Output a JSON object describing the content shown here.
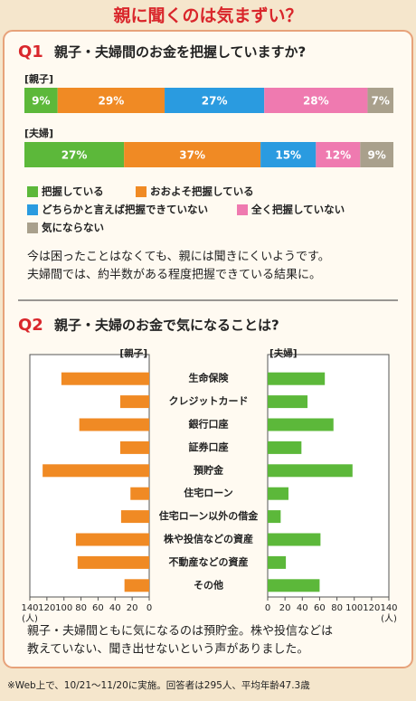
{
  "title": "親に聞くのは気まずい？",
  "chart_data": [
    {
      "type": "stacked-bar",
      "label": "Q1",
      "title": "親子・夫婦間のお金を把握していますか?",
      "categories": [
        "[親子]",
        "[夫婦]"
      ],
      "series": [
        {
          "name": "把握している",
          "color": "#5cb83a",
          "values": [
            9,
            27
          ],
          "value_labels": [
            "9%",
            "27%"
          ]
        },
        {
          "name": "おおよそ把握している",
          "color": "#f08a24",
          "values": [
            29,
            37
          ],
          "value_labels": [
            "29%",
            "37%"
          ]
        },
        {
          "name": "どちらかと言えば把握できていない",
          "color": "#2a9be0",
          "values": [
            27,
            15
          ],
          "value_labels": [
            "27%",
            "15%"
          ]
        },
        {
          "name": "全く把握していない",
          "color": "#ef7ab0",
          "values": [
            28,
            12
          ],
          "value_labels": [
            "28%",
            "12%"
          ]
        },
        {
          "name": "気にならない",
          "color": "#a9a08c",
          "values": [
            7,
            9
          ],
          "value_labels": [
            "7%",
            "9%"
          ]
        }
      ],
      "comment": [
        "今は困ったことはなくても、親には聞きにくいようです。",
        "夫婦間では、約半数がある程度把握できている結果に。"
      ]
    },
    {
      "type": "butterfly",
      "label": "Q2",
      "title": "親子・夫婦のお金で気になることは?",
      "categories": [
        "生命保険",
        "クレジットカード",
        "銀行口座",
        "証券口座",
        "預貯金",
        "住宅ローン",
        "住宅ローン以外の借金",
        "株や投信などの資産",
        "不動産などの資産",
        "その他"
      ],
      "series": [
        {
          "name": "[親子]",
          "color": "#f08a24",
          "values": [
            103,
            34,
            82,
            34,
            125,
            22,
            33,
            86,
            84,
            29
          ]
        },
        {
          "name": "[夫婦]",
          "color": "#5cb83a",
          "values": [
            66,
            46,
            76,
            39,
            98,
            24,
            15,
            61,
            21,
            60
          ]
        }
      ],
      "xlim": [
        0,
        140
      ],
      "xticks": [
        0,
        20,
        40,
        60,
        80,
        100,
        120,
        140
      ],
      "x_unit": "(人)",
      "comment": [
        "親子・夫婦間ともに気になるのは預貯金。株や投信などは",
        "教えていない、聞き出せないという声がありました。"
      ]
    }
  ],
  "footnote": "※Web上で、10/21～11/20に実施。回答者は295人、平均年齢47.3歳"
}
